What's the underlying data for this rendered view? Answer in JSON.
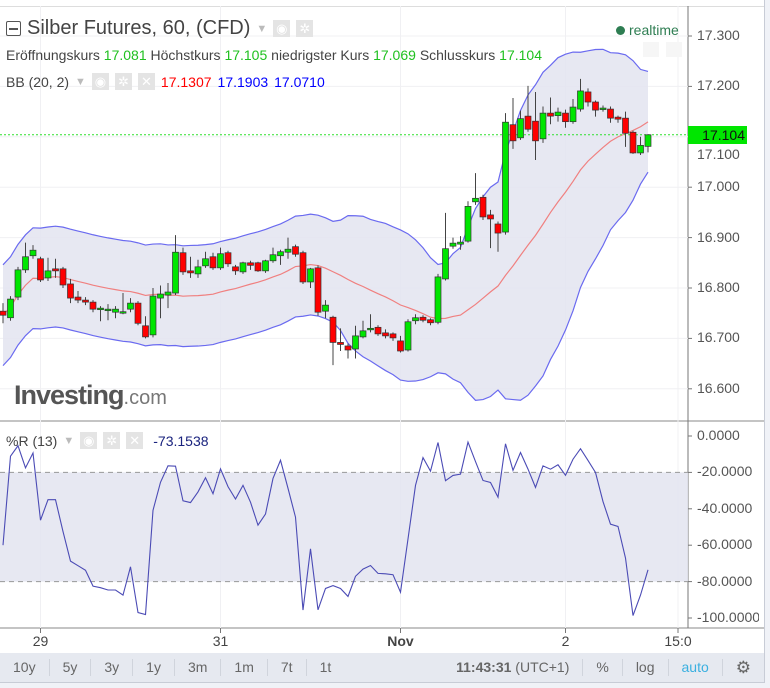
{
  "header": {
    "title": "Silber Futures, 60, (CFD)",
    "realtime_label": "realtime"
  },
  "ohlc": {
    "open_label": "Eröffnungskurs",
    "open": "17.081",
    "high_label": "Höchstkurs",
    "high": "17.105",
    "low_label": "niedrigster Kurs",
    "low": "17.069",
    "close_label": "Schlusskurs",
    "close": "17.104"
  },
  "bb": {
    "label": "BB (20, 2)",
    "basis": "17.1307",
    "upper": "17.1903",
    "lower": "17.0710"
  },
  "wr": {
    "label": "%R (13)",
    "value": "-73.1538"
  },
  "logo": {
    "main": "Investing",
    "suffix": ".com"
  },
  "current_price": "17.104",
  "colors": {
    "up": "#00e600",
    "down": "#ff0000",
    "band_fill": "#e3e4f0",
    "band_line": "#6a6af0",
    "basis_line": "#f08080",
    "wr_line": "#4b4bb5",
    "realtime": "#2e7d52",
    "auto": "#3bb0e0"
  },
  "toolbar": {
    "ranges": [
      "10y",
      "5y",
      "3y",
      "1y",
      "3m",
      "1m",
      "7t",
      "1t"
    ],
    "clock": "11:43:31",
    "tz": "(UTC+1)",
    "percent": "%",
    "log": "log",
    "auto": "auto"
  },
  "chart_data": {
    "type": "candlestick",
    "indicators": [
      "Bollinger Bands (20, 2)",
      "Williams %R (13)"
    ],
    "price_axis": {
      "ticks": [
        "17.300",
        "17.200",
        "17.100",
        "17.000",
        "16.900",
        "16.800",
        "16.700",
        "16.600"
      ],
      "range": [
        16.565,
        17.36
      ]
    },
    "wr_axis": {
      "ticks": [
        "0.0000",
        "-20.0000",
        "-40.0000",
        "-60.0000",
        "-80.0000",
        "-100.0000"
      ],
      "range": [
        -100,
        0
      ],
      "bands": [
        -20,
        -80
      ]
    },
    "time_ticks": [
      {
        "label": "29",
        "index": 5
      },
      {
        "label": "31",
        "index": 29
      },
      {
        "label": "Nov",
        "index": 53,
        "bold": true
      },
      {
        "label": "2",
        "index": 75
      },
      {
        "label": "15:0",
        "index": 90
      }
    ],
    "ohlc": [
      [
        16.754,
        16.77,
        16.73,
        16.746
      ],
      [
        16.741,
        16.784,
        16.735,
        16.778
      ],
      [
        16.782,
        16.842,
        16.776,
        16.836
      ],
      [
        16.836,
        16.89,
        16.83,
        16.862
      ],
      [
        16.864,
        16.885,
        16.858,
        16.875
      ],
      [
        16.858,
        16.862,
        16.812,
        16.816
      ],
      [
        16.82,
        16.86,
        16.814,
        16.834
      ],
      [
        16.838,
        16.858,
        16.82,
        16.834
      ],
      [
        16.838,
        16.842,
        16.8,
        16.806
      ],
      [
        16.808,
        16.818,
        16.77,
        16.78
      ],
      [
        16.782,
        16.794,
        16.77,
        16.776
      ],
      [
        16.776,
        16.782,
        16.766,
        16.772
      ],
      [
        16.772,
        16.776,
        16.752,
        16.758
      ],
      [
        16.757,
        16.764,
        16.734,
        16.76
      ],
      [
        16.758,
        16.768,
        16.736,
        16.758
      ],
      [
        16.752,
        16.764,
        16.74,
        16.758
      ],
      [
        16.753,
        16.79,
        16.748,
        16.753
      ],
      [
        16.758,
        16.78,
        16.752,
        16.77
      ],
      [
        16.77,
        16.774,
        16.726,
        16.73
      ],
      [
        16.725,
        16.744,
        16.7,
        16.703
      ],
      [
        16.707,
        16.8,
        16.702,
        16.784
      ],
      [
        16.78,
        16.805,
        16.74,
        16.788
      ],
      [
        16.786,
        16.81,
        16.76,
        16.792
      ],
      [
        16.79,
        16.905,
        16.786,
        16.871
      ],
      [
        16.87,
        16.88,
        16.826,
        16.832
      ],
      [
        16.834,
        16.862,
        16.82,
        16.83
      ],
      [
        16.828,
        16.856,
        16.82,
        16.842
      ],
      [
        16.844,
        16.872,
        16.84,
        16.858
      ],
      [
        16.862,
        16.87,
        16.836,
        16.84
      ],
      [
        16.84,
        16.88,
        16.836,
        16.868
      ],
      [
        16.87,
        16.874,
        16.842,
        16.848
      ],
      [
        16.842,
        16.846,
        16.826,
        16.834
      ],
      [
        16.832,
        16.852,
        16.828,
        16.85
      ],
      [
        16.85,
        16.854,
        16.836,
        16.845
      ],
      [
        16.85,
        16.852,
        16.832,
        16.834
      ],
      [
        16.834,
        16.856,
        16.83,
        16.854
      ],
      [
        16.854,
        16.88,
        16.85,
        16.866
      ],
      [
        16.864,
        16.876,
        16.846,
        16.872
      ],
      [
        16.871,
        16.9,
        16.858,
        16.877
      ],
      [
        16.882,
        16.886,
        16.862,
        16.867
      ],
      [
        16.87,
        16.874,
        16.808,
        16.812
      ],
      [
        16.812,
        16.84,
        16.8,
        16.838
      ],
      [
        16.84,
        16.845,
        16.745,
        16.752
      ],
      [
        16.754,
        16.776,
        16.74,
        16.766
      ],
      [
        16.742,
        16.745,
        16.647,
        16.692
      ],
      [
        16.692,
        16.72,
        16.675,
        16.688
      ],
      [
        16.685,
        16.69,
        16.66,
        16.677
      ],
      [
        16.679,
        16.725,
        16.66,
        16.705
      ],
      [
        16.703,
        16.735,
        16.7,
        16.715
      ],
      [
        16.718,
        16.748,
        16.712,
        16.72
      ],
      [
        16.722,
        16.726,
        16.705,
        16.709
      ],
      [
        16.711,
        16.718,
        16.7,
        16.705
      ],
      [
        16.709,
        16.712,
        16.695,
        16.701
      ],
      [
        16.695,
        16.705,
        16.672,
        16.675
      ],
      [
        16.677,
        16.738,
        16.674,
        16.733
      ],
      [
        16.735,
        16.748,
        16.728,
        16.741
      ],
      [
        16.742,
        16.746,
        16.732,
        16.736
      ],
      [
        16.737,
        16.74,
        16.726,
        16.731
      ],
      [
        16.732,
        16.828,
        16.728,
        16.822
      ],
      [
        16.818,
        16.949,
        16.815,
        16.878
      ],
      [
        16.883,
        16.9,
        16.878,
        16.889
      ],
      [
        16.887,
        16.903,
        16.876,
        16.891
      ],
      [
        16.893,
        16.972,
        16.89,
        16.962
      ],
      [
        16.971,
        17.028,
        16.965,
        16.978
      ],
      [
        16.98,
        16.985,
        16.935,
        16.941
      ],
      [
        16.945,
        16.955,
        16.879,
        16.937
      ],
      [
        16.927,
        16.932,
        16.872,
        16.909
      ],
      [
        16.911,
        17.147,
        16.906,
        17.129
      ],
      [
        17.124,
        17.177,
        17.076,
        17.092
      ],
      [
        17.098,
        17.152,
        17.094,
        17.136
      ],
      [
        17.141,
        17.201,
        17.11,
        17.115
      ],
      [
        17.131,
        17.189,
        17.054,
        17.092
      ],
      [
        17.096,
        17.16,
        17.088,
        17.147
      ],
      [
        17.147,
        17.178,
        17.125,
        17.141
      ],
      [
        17.142,
        17.158,
        17.13,
        17.149
      ],
      [
        17.147,
        17.154,
        17.118,
        17.13
      ],
      [
        17.13,
        17.175,
        17.126,
        17.159
      ],
      [
        17.155,
        17.215,
        17.15,
        17.191
      ],
      [
        17.189,
        17.196,
        17.16,
        17.169
      ],
      [
        17.169,
        17.172,
        17.14,
        17.153
      ],
      [
        17.157,
        17.162,
        17.15,
        17.157
      ],
      [
        17.155,
        17.16,
        17.128,
        17.137
      ],
      [
        17.139,
        17.142,
        17.128,
        17.135
      ],
      [
        17.137,
        17.15,
        17.08,
        17.107
      ],
      [
        17.109,
        17.112,
        17.066,
        17.068
      ],
      [
        17.068,
        17.1,
        17.064,
        17.083
      ],
      [
        17.081,
        17.105,
        17.069,
        17.104
      ]
    ]
  }
}
